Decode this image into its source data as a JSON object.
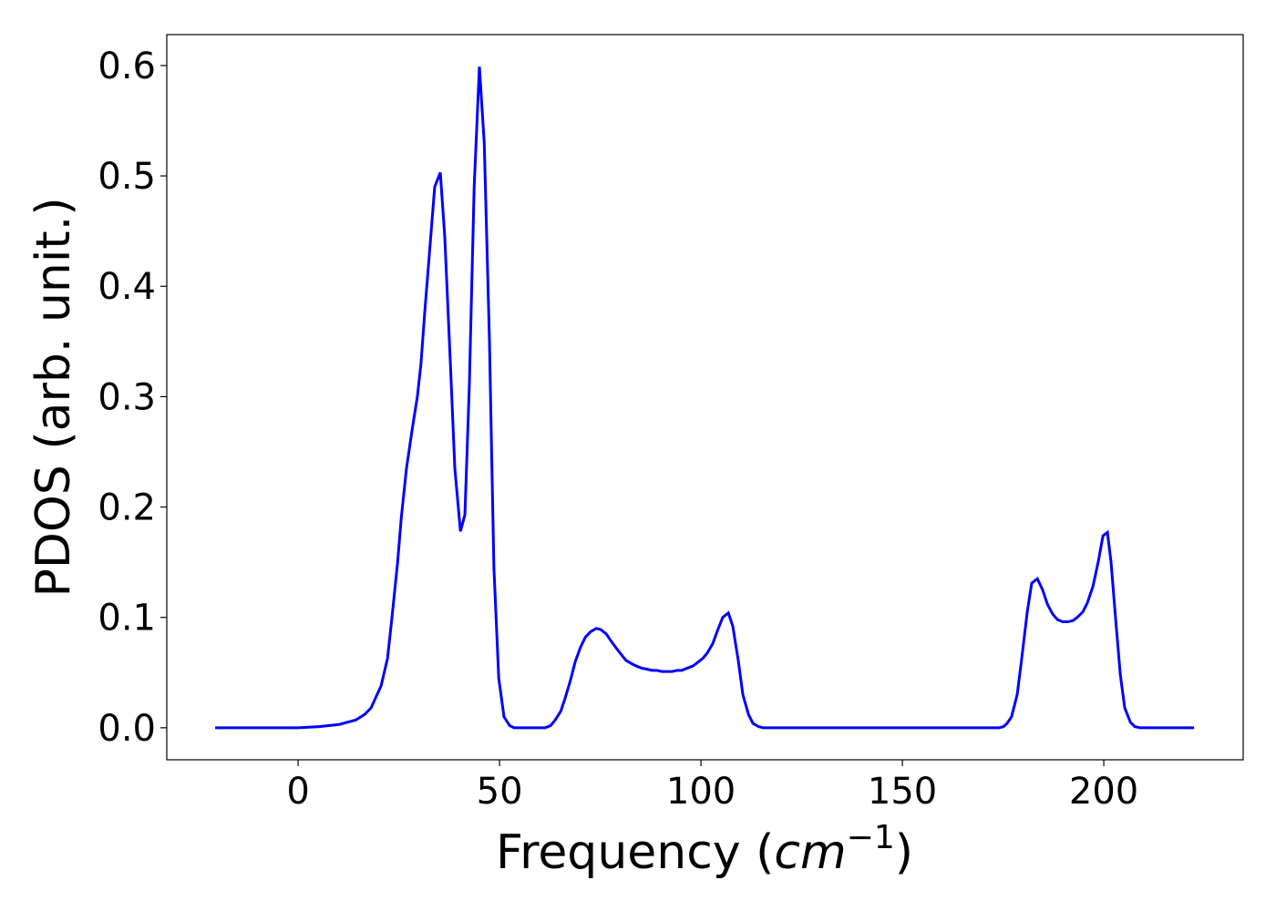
{
  "chart_data": {
    "type": "line",
    "xlabel": [
      "Frequency (",
      "cm",
      "−1",
      ")"
    ],
    "ylabel": "PDOS (arb. unit.)",
    "xlim": [
      -32.6,
      234.6
    ],
    "ylim": [
      -0.029,
      0.628
    ],
    "xticks": [
      0,
      50,
      100,
      150,
      200
    ],
    "yticks": [
      {
        "value": 0,
        "label": "0.0"
      },
      0.1,
      0.2,
      0.3,
      0.4,
      0.5,
      0.6
    ],
    "series": [
      {
        "color": "#0000ff",
        "x": [
          -20.6,
          0,
          5.2,
          10.2,
          14.3,
          16.5,
          18.1,
          20.6,
          22.2,
          23.3,
          24.7,
          25.6,
          26.9,
          28.3,
          29.6,
          30.5,
          31.4,
          32.6,
          33.9,
          35.3,
          36.4,
          37.8,
          38.9,
          40.3,
          41.4,
          42.5,
          43.7,
          45.0,
          46.2,
          47.5,
          48.6,
          49.8,
          51.1,
          52.5,
          53.6,
          61.3,
          62.7,
          63.8,
          65.2,
          66.3,
          67.6,
          68.8,
          70.1,
          71.3,
          72.6,
          74.0,
          75.1,
          76.5,
          77.6,
          79.0,
          80.3,
          81.4,
          82.8,
          83.9,
          85.3,
          86.7,
          87.8,
          89.1,
          90.3,
          91.6,
          92.8,
          94.1,
          95.2,
          96.6,
          98.0,
          99.1,
          100.5,
          101.6,
          102.9,
          104.1,
          105.4,
          106.8,
          107.9,
          109.3,
          110.4,
          111.8,
          112.9,
          114.3,
          115.4,
          174.0,
          175.1,
          176.0,
          177.1,
          178.5,
          179.6,
          181.0,
          182.1,
          183.5,
          184.8,
          186.0,
          187.3,
          188.5,
          189.8,
          191.0,
          192.3,
          193.4,
          194.8,
          195.9,
          197.3,
          198.6,
          199.8,
          200.9,
          201.8,
          202.9,
          204.1,
          205.2,
          206.6,
          207.7,
          209.0,
          222.4
        ],
        "values": [
          0,
          0,
          0.001,
          0.003,
          0.007,
          0.012,
          0.018,
          0.038,
          0.063,
          0.1,
          0.15,
          0.19,
          0.235,
          0.27,
          0.3,
          0.33,
          0.375,
          0.43,
          0.49,
          0.503,
          0.445,
          0.33,
          0.235,
          0.178,
          0.193,
          0.31,
          0.49,
          0.599,
          0.53,
          0.35,
          0.145,
          0.045,
          0.01,
          0.002,
          0,
          0,
          0.002,
          0.007,
          0.015,
          0.027,
          0.043,
          0.06,
          0.073,
          0.082,
          0.087,
          0.09,
          0.089,
          0.085,
          0.079,
          0.072,
          0.066,
          0.061,
          0.058,
          0.056,
          0.054,
          0.053,
          0.052,
          0.052,
          0.051,
          0.051,
          0.051,
          0.052,
          0.052,
          0.054,
          0.056,
          0.059,
          0.063,
          0.068,
          0.076,
          0.088,
          0.1,
          0.104,
          0.092,
          0.06,
          0.03,
          0.012,
          0.004,
          0.001,
          0,
          0,
          0.001,
          0.004,
          0.01,
          0.03,
          0.062,
          0.105,
          0.131,
          0.135,
          0.125,
          0.112,
          0.103,
          0.098,
          0.096,
          0.096,
          0.097,
          0.1,
          0.105,
          0.113,
          0.128,
          0.15,
          0.174,
          0.177,
          0.15,
          0.1,
          0.048,
          0.018,
          0.005,
          0.001,
          0,
          0
        ]
      }
    ]
  }
}
